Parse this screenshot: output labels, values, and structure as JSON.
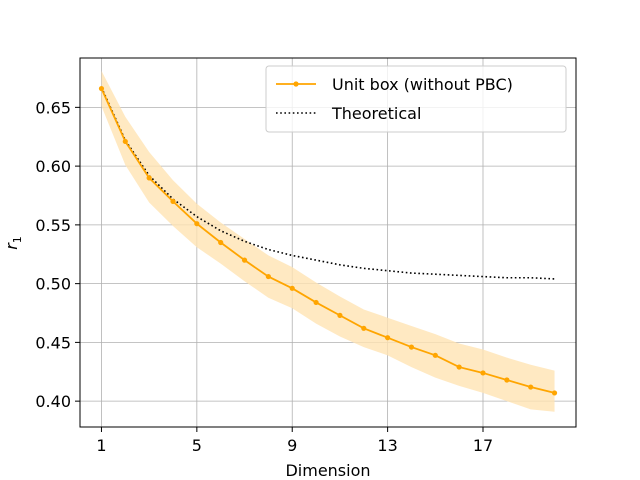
{
  "chart_data": {
    "type": "line",
    "xlabel": "Dimension",
    "ylabel": "r",
    "ylabel_subscript": "1",
    "xlim": [
      0.1,
      20.9
    ],
    "ylim": [
      0.378,
      0.692
    ],
    "xticks": [
      1,
      5,
      9,
      13,
      17
    ],
    "yticks": [
      0.4,
      0.45,
      0.5,
      0.55,
      0.6,
      0.65
    ],
    "ytick_labels": [
      "0.40",
      "0.45",
      "0.50",
      "0.55",
      "0.60",
      "0.65"
    ],
    "grid": true,
    "legend_position": "top-right",
    "series": [
      {
        "name": "Unit box (without PBC)",
        "style": "solid-line-with-dots",
        "color": "#FFA500",
        "band_color": "#FFE4B3",
        "x": [
          1,
          2,
          3,
          4,
          5,
          6,
          7,
          8,
          9,
          10,
          11,
          12,
          13,
          14,
          15,
          16,
          17,
          18,
          19,
          20
        ],
        "values": [
          0.666,
          0.621,
          0.59,
          0.57,
          0.551,
          0.535,
          0.52,
          0.506,
          0.496,
          0.484,
          0.473,
          0.462,
          0.454,
          0.446,
          0.439,
          0.429,
          0.424,
          0.418,
          0.412,
          0.407
        ],
        "upper": [
          0.681,
          0.642,
          0.612,
          0.588,
          0.568,
          0.552,
          0.538,
          0.524,
          0.514,
          0.501,
          0.489,
          0.478,
          0.471,
          0.464,
          0.457,
          0.449,
          0.444,
          0.437,
          0.431,
          0.426
        ],
        "lower": [
          0.651,
          0.601,
          0.569,
          0.549,
          0.531,
          0.517,
          0.502,
          0.488,
          0.479,
          0.466,
          0.455,
          0.446,
          0.439,
          0.429,
          0.42,
          0.413,
          0.407,
          0.4,
          0.393,
          0.391
        ]
      },
      {
        "name": "Theoretical",
        "style": "dotted-line",
        "color": "#000000",
        "x": [
          1,
          2,
          3,
          4,
          5,
          6,
          7,
          8,
          9,
          10,
          11,
          12,
          13,
          14,
          15,
          16,
          17,
          18,
          19,
          20
        ],
        "values": [
          0.667,
          0.622,
          0.592,
          0.572,
          0.557,
          0.545,
          0.536,
          0.529,
          0.524,
          0.52,
          0.516,
          0.513,
          0.511,
          0.509,
          0.508,
          0.507,
          0.506,
          0.505,
          0.505,
          0.504
        ]
      }
    ]
  }
}
